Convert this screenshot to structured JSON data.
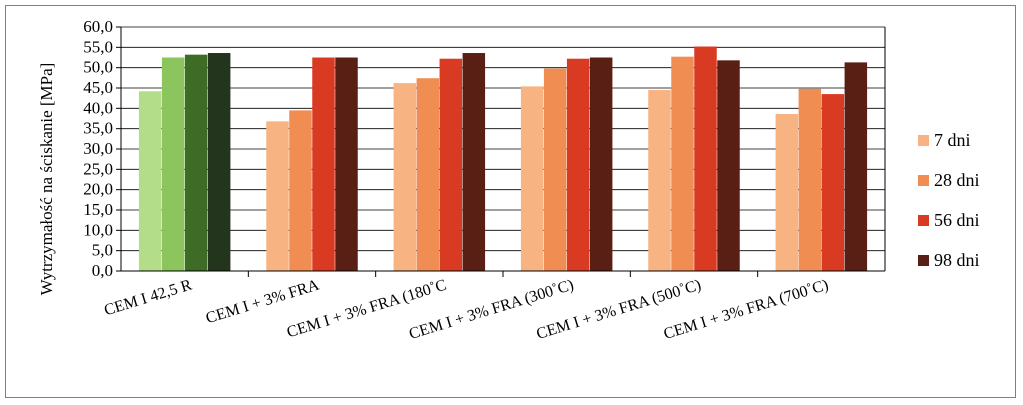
{
  "chart_data": {
    "type": "bar",
    "ylabel": "Wytrzymałość na ściskanie [MPa]",
    "xlabel": "",
    "ylim": [
      0,
      60
    ],
    "ytick_step": 5,
    "ytick_labels": [
      "0,0",
      "5,0",
      "10,0",
      "15,0",
      "20,0",
      "25,0",
      "30,0",
      "35,0",
      "40,0",
      "45,0",
      "50,0",
      "55,0",
      "60,0"
    ],
    "grid": "horizontal",
    "legend_position": "right",
    "categories": [
      "CEM I 42,5 R",
      "CEM I + 3% FRA",
      "CEM I + 3% FRA (180˚C",
      "CEM I + 3% FRA (300˚C)",
      "CEM I + 3% FRA (500˚C)",
      "CEM I + 3% FRA (700˚C)"
    ],
    "series": [
      {
        "name": "7 dni",
        "values": [
          44.2,
          36.8,
          46.2,
          45.4,
          44.5,
          38.6
        ]
      },
      {
        "name": "28 dni",
        "values": [
          52.5,
          39.5,
          47.4,
          49.8,
          52.7,
          44.8
        ]
      },
      {
        "name": "56 dni",
        "values": [
          53.2,
          52.5,
          52.2,
          52.2,
          55.2,
          43.5
        ]
      },
      {
        "name": "98 dni",
        "values": [
          53.6,
          52.5,
          53.6,
          52.5,
          51.8,
          51.3
        ]
      }
    ],
    "colors": {
      "reference_group": [
        "#b4dd8a",
        "#8cc45e",
        "#3e6b25",
        "#24351d"
      ],
      "series": [
        "#f8b383",
        "#f08d52",
        "#d93b22",
        "#5a1f14"
      ]
    }
  }
}
